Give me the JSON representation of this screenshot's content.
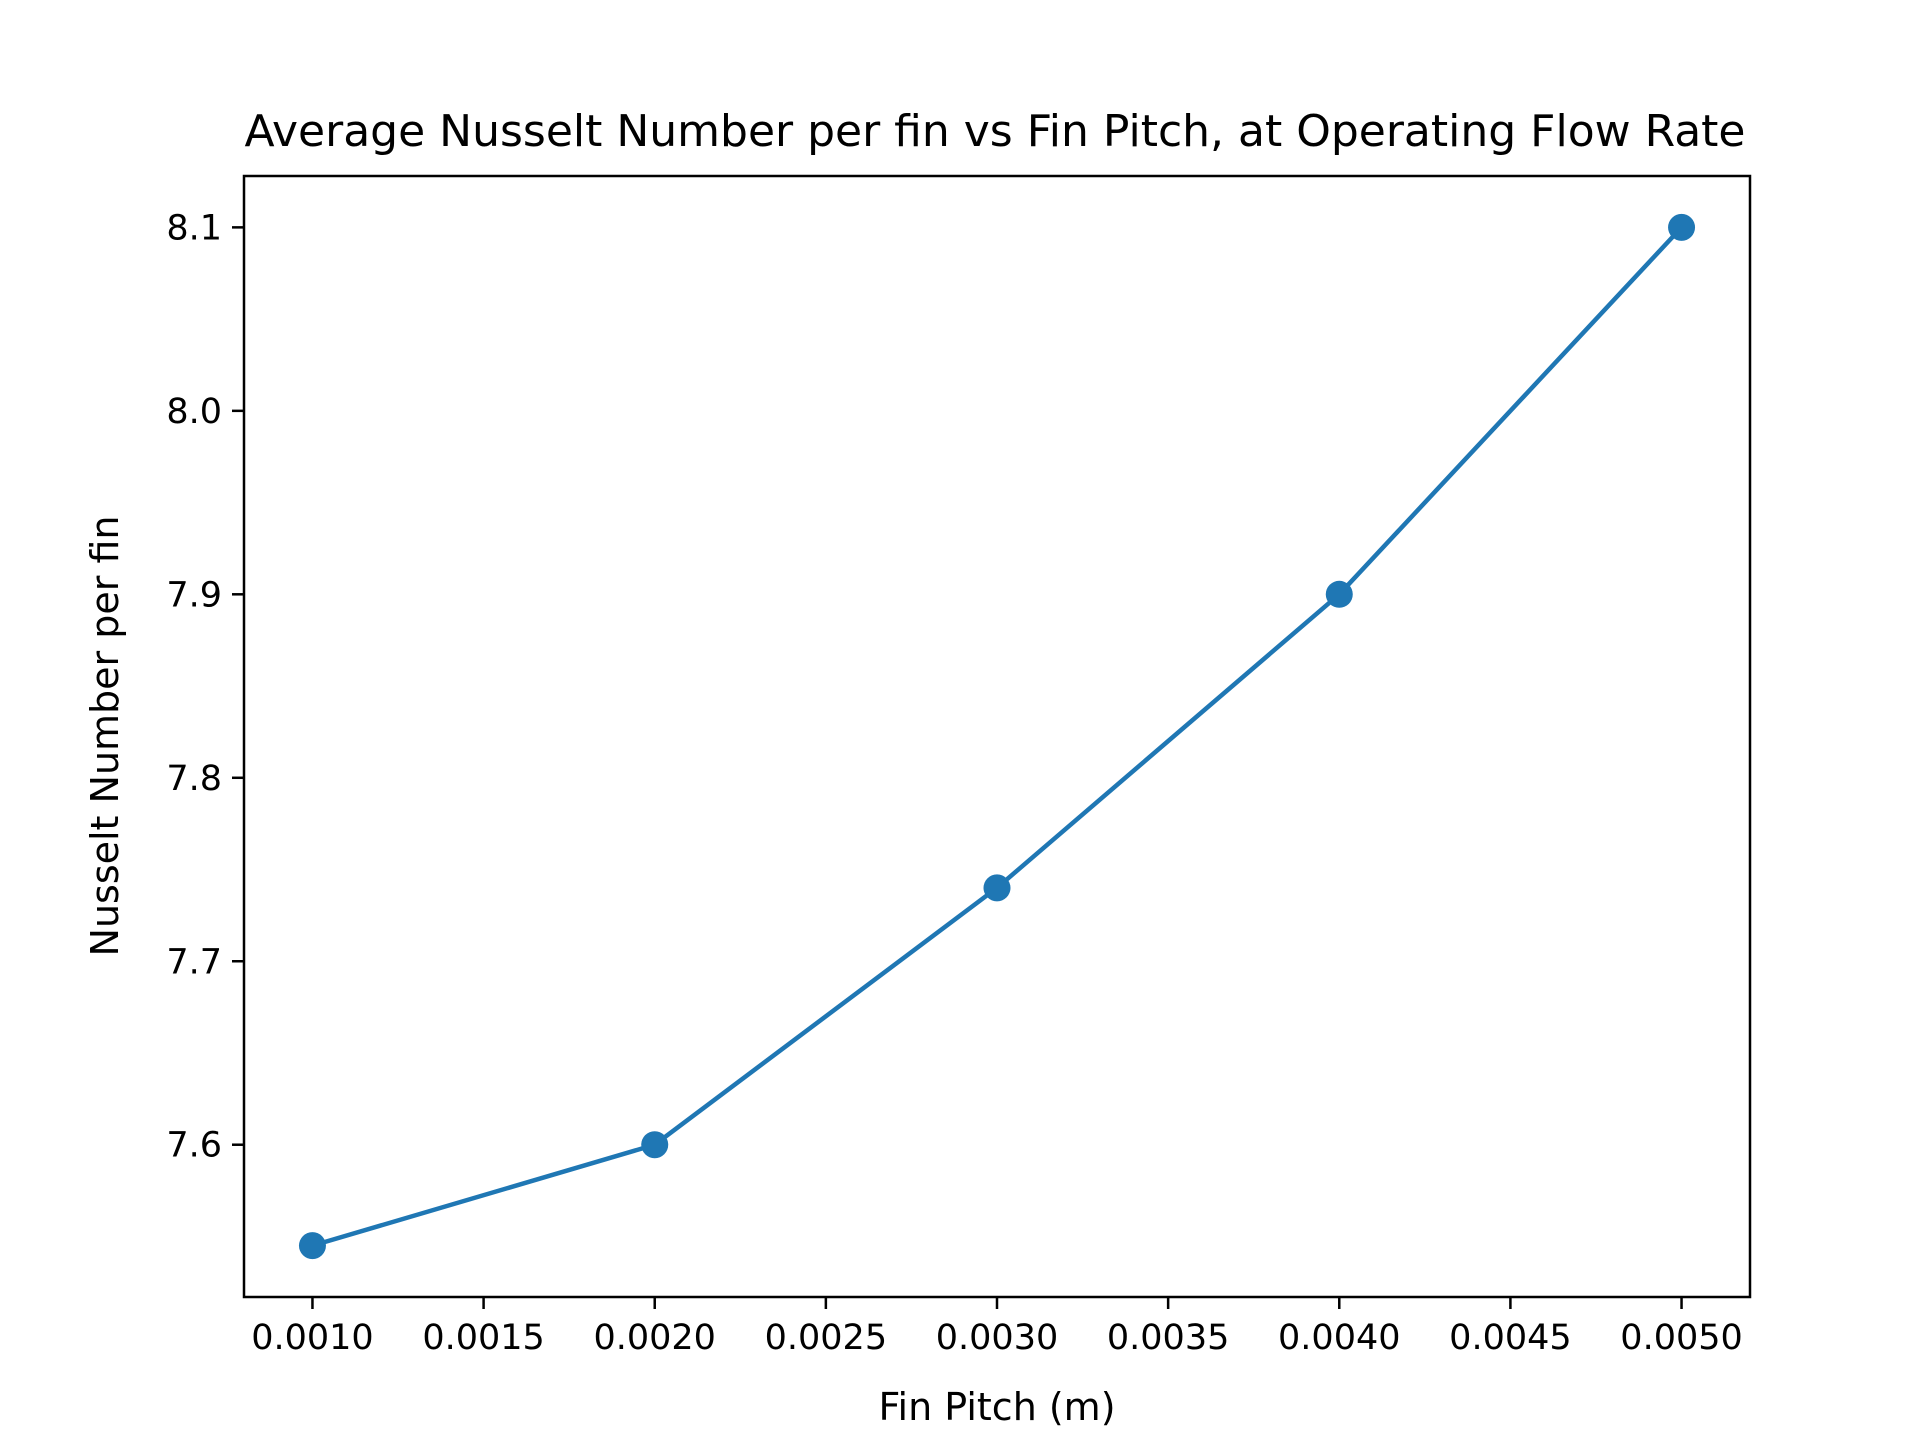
{
  "chart_data": {
    "type": "line",
    "title": "Average Nusselt Number per fin vs Fin Pitch, at Operating Flow Rate",
    "xlabel": "Fin Pitch (m)",
    "ylabel": "Nusselt Number per fin",
    "x": [
      0.001,
      0.002,
      0.003,
      0.004,
      0.005
    ],
    "series": [
      {
        "values": [
          7.545,
          7.6,
          7.74,
          7.9,
          8.1
        ],
        "color": "#1f77b4",
        "marker": "circle"
      }
    ],
    "xlim": [
      0.0008,
      0.0052
    ],
    "ylim": [
      7.517,
      8.128
    ],
    "xticks": [
      0.001,
      0.0015,
      0.002,
      0.0025,
      0.003,
      0.0035,
      0.004,
      0.0045,
      0.005
    ],
    "xtick_labels": [
      "0.0010",
      "0.0015",
      "0.0020",
      "0.0025",
      "0.0030",
      "0.0035",
      "0.0040",
      "0.0045",
      "0.0050"
    ],
    "yticks": [
      7.6,
      7.7,
      7.8,
      7.9,
      8.0,
      8.1
    ],
    "ytick_labels": [
      "7.6",
      "7.7",
      "7.8",
      "7.9",
      "8.0",
      "8.1"
    ],
    "grid": false,
    "legend": false
  }
}
